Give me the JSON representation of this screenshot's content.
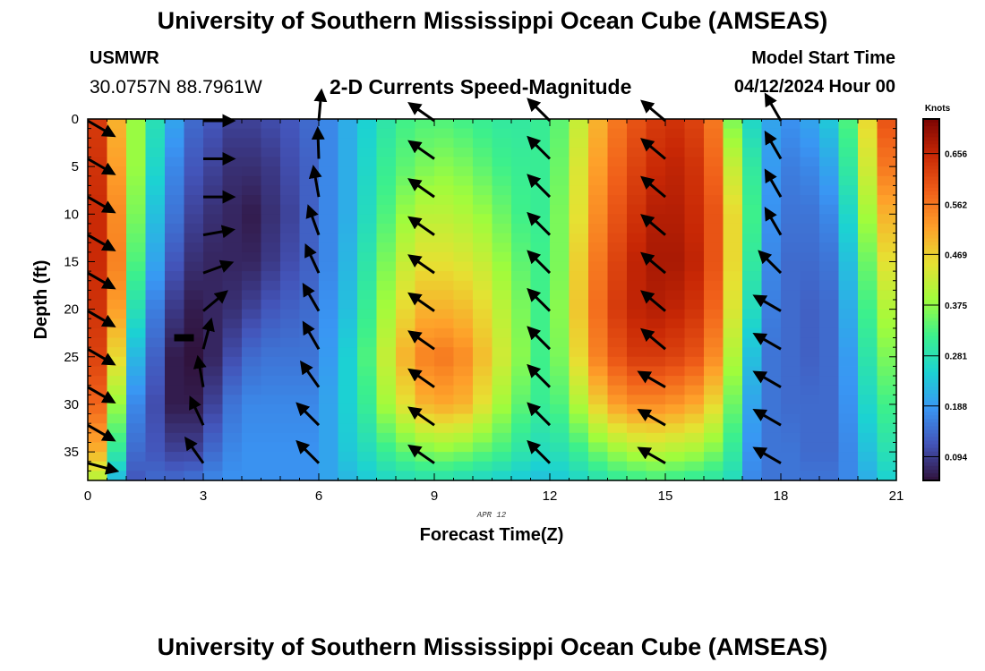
{
  "header": {
    "title": "University of Southern Mississippi Ocean Cube (AMSEAS)",
    "station": "USMWR",
    "coords": "30.0757N  88.7961W",
    "subtitle": "2-D Currents Speed-Magnitude",
    "start_label": "Model Start Time",
    "start_value": "04/12/2024 Hour 00"
  },
  "footer": {
    "title": "University of Southern Mississippi Ocean Cube (AMSEAS)"
  },
  "chart_data": {
    "type": "heatmap",
    "title": "2-D Currents Speed-Magnitude",
    "xlabel": "Forecast Time(Z)",
    "ylabel": "Depth (ft)",
    "date_label": "APR 12",
    "xlim": [
      0,
      21
    ],
    "ylim": [
      0,
      38
    ],
    "xticks": [
      "0",
      "3",
      "6",
      "9",
      "12",
      "15",
      "18",
      "21"
    ],
    "yticks": [
      "0",
      "5",
      "10",
      "15",
      "20",
      "25",
      "30",
      "35"
    ],
    "colorbar": {
      "unit": "Knots",
      "ticks": [
        "0.094",
        "0.188",
        "0.281",
        "0.375",
        "0.469",
        "0.562",
        "0.656"
      ],
      "range": [
        0.05,
        0.72
      ]
    },
    "columns": [
      {
        "t": 0.25,
        "speed": [
          0.63,
          0.64,
          0.65,
          0.65,
          0.64,
          0.62,
          0.58,
          0.5,
          0.4
        ]
      },
      {
        "t": 0.75,
        "speed": [
          0.5,
          0.52,
          0.54,
          0.55,
          0.52,
          0.46,
          0.38,
          0.3,
          0.22
        ]
      },
      {
        "t": 1.25,
        "speed": [
          0.38,
          0.38,
          0.36,
          0.33,
          0.28,
          0.22,
          0.17,
          0.14,
          0.12
        ]
      },
      {
        "t": 1.75,
        "speed": [
          0.28,
          0.26,
          0.23,
          0.2,
          0.16,
          0.13,
          0.11,
          0.12,
          0.14
        ]
      },
      {
        "t": 2.25,
        "speed": [
          0.2,
          0.17,
          0.15,
          0.12,
          0.09,
          0.06,
          0.06,
          0.1,
          0.14
        ]
      },
      {
        "t": 2.75,
        "speed": [
          0.14,
          0.12,
          0.1,
          0.08,
          0.06,
          0.05,
          0.06,
          0.1,
          0.15
        ]
      },
      {
        "t": 3.25,
        "speed": [
          0.12,
          0.1,
          0.08,
          0.07,
          0.07,
          0.07,
          0.1,
          0.14,
          0.17
        ]
      },
      {
        "t": 3.75,
        "speed": [
          0.1,
          0.08,
          0.07,
          0.07,
          0.08,
          0.11,
          0.15,
          0.17,
          0.18
        ]
      },
      {
        "t": 4.25,
        "speed": [
          0.1,
          0.08,
          0.06,
          0.07,
          0.1,
          0.14,
          0.17,
          0.18,
          0.18
        ]
      },
      {
        "t": 4.75,
        "speed": [
          0.11,
          0.09,
          0.08,
          0.09,
          0.12,
          0.15,
          0.17,
          0.18,
          0.18
        ]
      },
      {
        "t": 5.25,
        "speed": [
          0.12,
          0.11,
          0.1,
          0.11,
          0.13,
          0.15,
          0.17,
          0.18,
          0.18
        ]
      },
      {
        "t": 5.75,
        "speed": [
          0.14,
          0.13,
          0.13,
          0.13,
          0.14,
          0.15,
          0.17,
          0.18,
          0.18
        ]
      },
      {
        "t": 6.25,
        "speed": [
          0.17,
          0.17,
          0.17,
          0.17,
          0.18,
          0.19,
          0.2,
          0.2,
          0.2
        ]
      },
      {
        "t": 6.75,
        "speed": [
          0.21,
          0.21,
          0.21,
          0.22,
          0.23,
          0.25,
          0.25,
          0.24,
          0.22
        ]
      },
      {
        "t": 7.25,
        "speed": [
          0.25,
          0.26,
          0.27,
          0.29,
          0.31,
          0.33,
          0.31,
          0.27,
          0.24
        ]
      },
      {
        "t": 7.75,
        "speed": [
          0.29,
          0.31,
          0.33,
          0.36,
          0.39,
          0.42,
          0.39,
          0.31,
          0.26
        ]
      },
      {
        "t": 8.25,
        "speed": [
          0.32,
          0.34,
          0.38,
          0.42,
          0.46,
          0.5,
          0.45,
          0.34,
          0.27
        ]
      },
      {
        "t": 8.75,
        "speed": [
          0.33,
          0.36,
          0.41,
          0.45,
          0.5,
          0.55,
          0.5,
          0.36,
          0.28
        ]
      },
      {
        "t": 9.25,
        "speed": [
          0.33,
          0.37,
          0.41,
          0.45,
          0.5,
          0.56,
          0.51,
          0.37,
          0.28
        ]
      },
      {
        "t": 9.75,
        "speed": [
          0.32,
          0.36,
          0.4,
          0.44,
          0.49,
          0.54,
          0.5,
          0.36,
          0.27
        ]
      },
      {
        "t": 10.25,
        "speed": [
          0.31,
          0.34,
          0.38,
          0.42,
          0.46,
          0.49,
          0.45,
          0.34,
          0.26
        ]
      },
      {
        "t": 10.75,
        "speed": [
          0.3,
          0.32,
          0.35,
          0.38,
          0.41,
          0.43,
          0.39,
          0.32,
          0.25
        ]
      },
      {
        "t": 11.25,
        "speed": [
          0.3,
          0.31,
          0.32,
          0.34,
          0.36,
          0.37,
          0.34,
          0.29,
          0.24
        ]
      },
      {
        "t": 11.75,
        "speed": [
          0.31,
          0.31,
          0.31,
          0.32,
          0.32,
          0.32,
          0.31,
          0.27,
          0.23
        ]
      },
      {
        "t": 12.25,
        "speed": [
          0.34,
          0.35,
          0.36,
          0.36,
          0.37,
          0.36,
          0.33,
          0.28,
          0.24
        ]
      },
      {
        "t": 12.75,
        "speed": [
          0.42,
          0.44,
          0.45,
          0.47,
          0.48,
          0.46,
          0.4,
          0.31,
          0.26
        ]
      },
      {
        "t": 13.25,
        "speed": [
          0.5,
          0.52,
          0.54,
          0.56,
          0.57,
          0.55,
          0.47,
          0.35,
          0.28
        ]
      },
      {
        "t": 13.75,
        "speed": [
          0.56,
          0.58,
          0.6,
          0.62,
          0.63,
          0.6,
          0.52,
          0.38,
          0.3
        ]
      },
      {
        "t": 14.25,
        "speed": [
          0.6,
          0.62,
          0.64,
          0.66,
          0.66,
          0.63,
          0.54,
          0.4,
          0.31
        ]
      },
      {
        "t": 14.75,
        "speed": [
          0.63,
          0.65,
          0.67,
          0.68,
          0.67,
          0.63,
          0.54,
          0.41,
          0.32
        ]
      },
      {
        "t": 15.25,
        "speed": [
          0.64,
          0.66,
          0.67,
          0.68,
          0.66,
          0.62,
          0.53,
          0.4,
          0.31
        ]
      },
      {
        "t": 15.75,
        "speed": [
          0.62,
          0.64,
          0.65,
          0.66,
          0.64,
          0.6,
          0.51,
          0.39,
          0.3
        ]
      },
      {
        "t": 16.25,
        "speed": [
          0.56,
          0.58,
          0.6,
          0.6,
          0.58,
          0.54,
          0.46,
          0.36,
          0.29
        ]
      },
      {
        "t": 16.75,
        "speed": [
          0.36,
          0.42,
          0.46,
          0.46,
          0.44,
          0.4,
          0.35,
          0.3,
          0.27
        ]
      },
      {
        "t": 17.25,
        "speed": [
          0.26,
          0.3,
          0.32,
          0.3,
          0.27,
          0.23,
          0.2,
          0.18,
          0.17
        ]
      },
      {
        "t": 17.75,
        "speed": [
          0.2,
          0.19,
          0.18,
          0.17,
          0.16,
          0.15,
          0.15,
          0.15,
          0.15
        ]
      },
      {
        "t": 18.25,
        "speed": [
          0.18,
          0.16,
          0.15,
          0.14,
          0.14,
          0.14,
          0.14,
          0.15,
          0.15
        ]
      },
      {
        "t": 18.75,
        "speed": [
          0.2,
          0.17,
          0.15,
          0.14,
          0.13,
          0.13,
          0.14,
          0.14,
          0.15
        ]
      },
      {
        "t": 19.25,
        "speed": [
          0.24,
          0.2,
          0.17,
          0.15,
          0.14,
          0.14,
          0.14,
          0.14,
          0.15
        ]
      },
      {
        "t": 19.75,
        "speed": [
          0.33,
          0.3,
          0.26,
          0.23,
          0.21,
          0.19,
          0.18,
          0.17,
          0.17
        ]
      },
      {
        "t": 20.25,
        "speed": [
          0.46,
          0.43,
          0.39,
          0.35,
          0.32,
          0.29,
          0.26,
          0.23,
          0.21
        ]
      },
      {
        "t": 20.75,
        "speed": [
          0.6,
          0.56,
          0.5,
          0.45,
          0.4,
          0.36,
          0.32,
          0.28,
          0.25
        ]
      }
    ],
    "speed_depths": [
      0,
      5,
      10,
      15,
      20,
      25,
      30,
      35,
      38
    ],
    "vectors": [
      {
        "t": 0,
        "angle": -30,
        "depths": [
          0,
          4,
          8,
          12,
          16,
          20,
          24,
          28,
          32
        ]
      },
      {
        "t": 0,
        "angle": -15,
        "depths": [
          36
        ]
      },
      {
        "t": 3,
        "angle": 0,
        "depths": [
          0,
          4,
          8
        ]
      },
      {
        "t": 3,
        "angle": 10,
        "depths": [
          12
        ]
      },
      {
        "t": 3,
        "angle": 20,
        "depths": [
          16
        ]
      },
      {
        "t": 3,
        "angle": 40,
        "depths": [
          20
        ]
      },
      {
        "t": 3,
        "angle": 75,
        "depths": [
          24
        ]
      },
      {
        "t": 3,
        "angle": 100,
        "depths": [
          28
        ]
      },
      {
        "t": 3,
        "angle": 115,
        "depths": [
          32
        ]
      },
      {
        "t": 3,
        "angle": 125,
        "depths": [
          36
        ]
      },
      {
        "t": 6,
        "angle": 85,
        "depths": [
          0
        ]
      },
      {
        "t": 6,
        "angle": 92,
        "depths": [
          4
        ]
      },
      {
        "t": 6,
        "angle": 100,
        "depths": [
          8
        ]
      },
      {
        "t": 6,
        "angle": 110,
        "depths": [
          12
        ]
      },
      {
        "t": 6,
        "angle": 115,
        "depths": [
          16
        ]
      },
      {
        "t": 6,
        "angle": 120,
        "depths": [
          20,
          24
        ]
      },
      {
        "t": 6,
        "angle": 125,
        "depths": [
          28
        ]
      },
      {
        "t": 6,
        "angle": 135,
        "depths": [
          32,
          36
        ]
      },
      {
        "t": 9,
        "angle": 145,
        "depths": [
          0,
          4,
          8,
          12,
          16,
          20,
          24,
          28,
          32,
          36
        ]
      },
      {
        "t": 12,
        "angle": 135,
        "depths": [
          0,
          4,
          8,
          12,
          16,
          20,
          24,
          28,
          32,
          36
        ]
      },
      {
        "t": 15,
        "angle": 140,
        "depths": [
          0,
          4,
          8,
          12,
          16,
          20,
          24
        ]
      },
      {
        "t": 15,
        "angle": 150,
        "depths": [
          28,
          32,
          36
        ]
      },
      {
        "t": 18,
        "angle": 120,
        "depths": [
          0,
          4,
          8,
          12
        ]
      },
      {
        "t": 18,
        "angle": 135,
        "depths": [
          16
        ]
      },
      {
        "t": 18,
        "angle": 150,
        "depths": [
          20,
          24,
          28,
          32,
          36
        ]
      }
    ],
    "marker": {
      "t": 2.5,
      "depth": 23,
      "label": ""
    }
  }
}
